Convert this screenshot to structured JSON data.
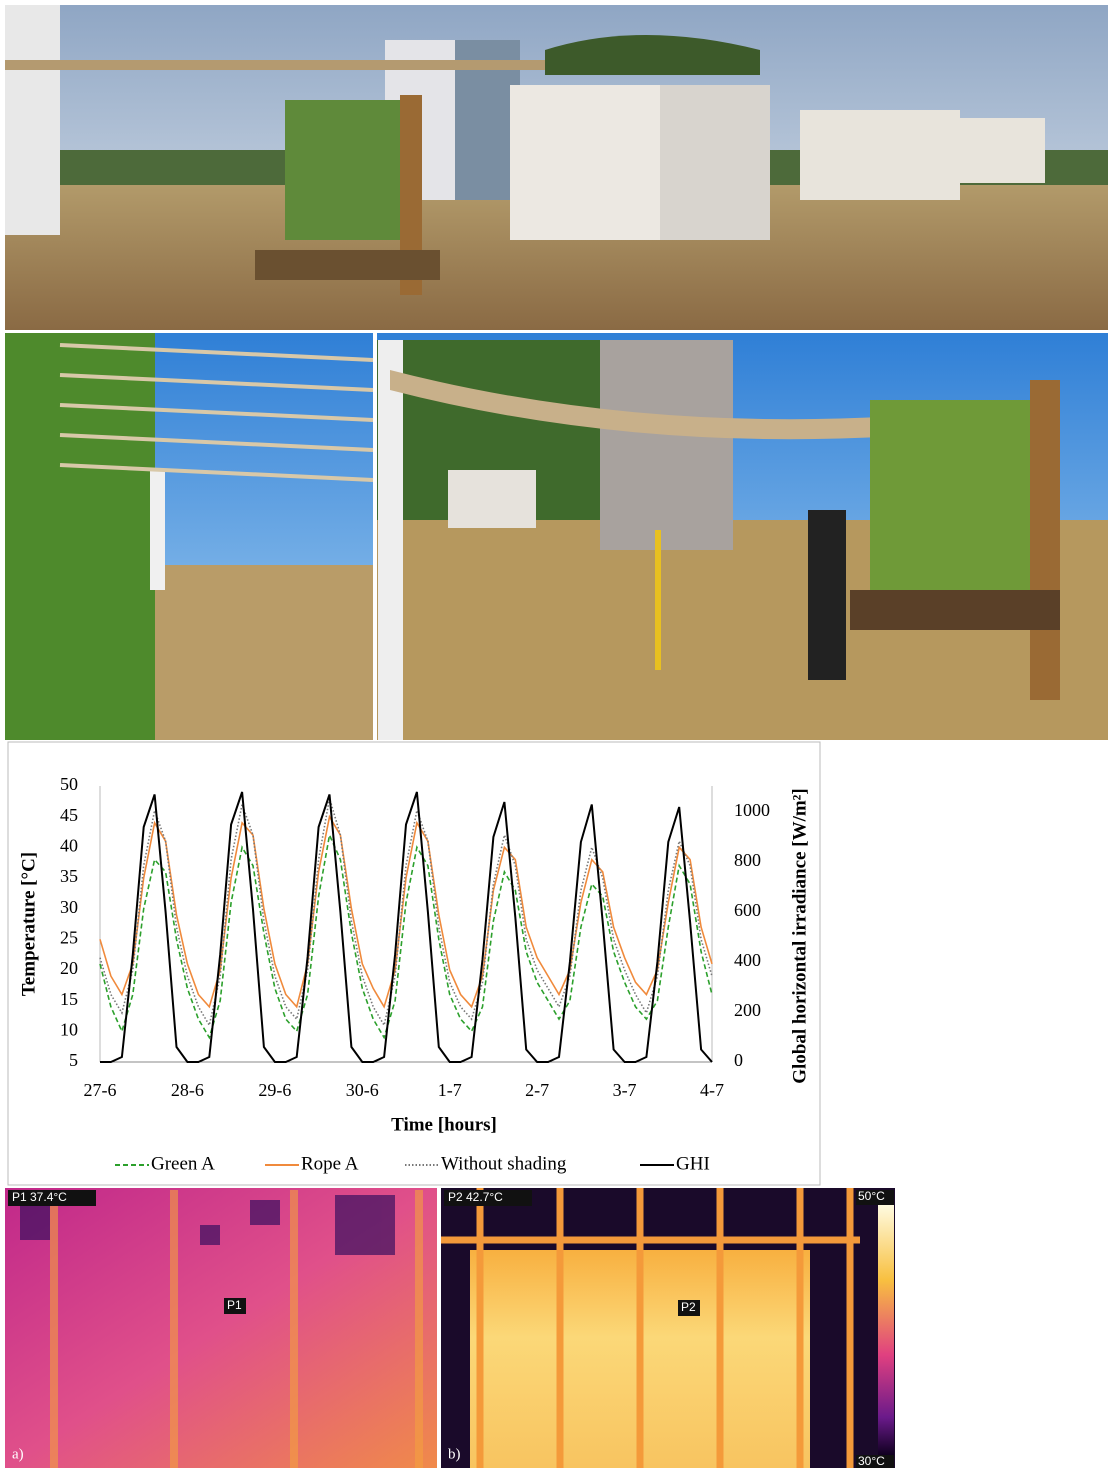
{
  "chart_data": {
    "type": "line",
    "x": [
      0,
      3,
      6,
      9,
      12,
      15,
      18,
      21,
      24,
      27,
      30,
      33,
      36,
      39,
      42,
      45,
      48,
      51,
      54,
      57,
      60,
      63,
      66,
      69,
      72,
      75,
      78,
      81,
      84,
      87,
      90,
      93,
      96,
      99,
      102,
      105,
      108,
      111,
      114,
      117,
      120,
      123,
      126,
      129,
      132,
      135,
      138,
      141,
      144,
      147,
      150,
      153,
      156,
      159,
      162,
      165,
      168
    ],
    "xlim": [
      0,
      168
    ],
    "xticks": [
      {
        "value": 0,
        "label": "27-6"
      },
      {
        "value": 24,
        "label": "28-6"
      },
      {
        "value": 48,
        "label": "29-6"
      },
      {
        "value": 72,
        "label": "30-6"
      },
      {
        "value": 96,
        "label": "1-7"
      },
      {
        "value": 120,
        "label": "2-7"
      },
      {
        "value": 144,
        "label": "3-7"
      },
      {
        "value": 168,
        "label": "4-7"
      }
    ],
    "ylim": [
      5,
      50
    ],
    "yticks": [
      5,
      10,
      15,
      20,
      25,
      30,
      35,
      40,
      45,
      50
    ],
    "y2lim": [
      0,
      1104
    ],
    "y2ticks": [
      0,
      200,
      400,
      600,
      800,
      1000
    ],
    "x_label": "Time [hours]",
    "y_label": "Temperature [°C]",
    "y2_label": "Global horizontal irradiance [W/m²]",
    "grid": false,
    "legend": "bottom",
    "series": [
      {
        "name": "Green A",
        "color": "#2ca02c",
        "dash": "dashed",
        "values": [
          21,
          14,
          10,
          16,
          30,
          38,
          36,
          25,
          17,
          12,
          9,
          15,
          31,
          40,
          37,
          26,
          17,
          12,
          10,
          16,
          32,
          42,
          38,
          26,
          17,
          12,
          9,
          15,
          31,
          40,
          37,
          25,
          16,
          12,
          10,
          14,
          28,
          36,
          33,
          23,
          18,
          15,
          12,
          15,
          27,
          34,
          32,
          23,
          18,
          14,
          12,
          15,
          27,
          37,
          34,
          23,
          16
        ]
      },
      {
        "name": "Rope A",
        "color": "#f08a3c",
        "dash": "solid",
        "values": [
          25,
          19,
          16,
          21,
          35,
          44,
          41,
          29,
          21,
          16,
          14,
          20,
          35,
          44,
          42,
          30,
          21,
          16,
          14,
          21,
          36,
          45,
          42,
          30,
          21,
          17,
          14,
          20,
          35,
          44,
          41,
          29,
          20,
          16,
          14,
          19,
          33,
          40,
          38,
          27,
          22,
          19,
          16,
          20,
          31,
          38,
          36,
          27,
          22,
          18,
          16,
          20,
          31,
          40,
          38,
          27,
          21
        ]
      },
      {
        "name": "Without shading",
        "color": "#777777",
        "dash": "dotted",
        "values": [
          22,
          16,
          13,
          20,
          37,
          46,
          41,
          27,
          19,
          14,
          11,
          19,
          38,
          47,
          42,
          28,
          19,
          14,
          12,
          20,
          38,
          48,
          42,
          28,
          19,
          14,
          11,
          19,
          37,
          46,
          41,
          27,
          18,
          14,
          12,
          18,
          34,
          42,
          37,
          25,
          20,
          17,
          14,
          19,
          33,
          40,
          35,
          25,
          20,
          16,
          13,
          19,
          33,
          41,
          37,
          25,
          19
        ]
      },
      {
        "name": "GHI",
        "color": "#000000",
        "dash": "solid",
        "axis": "y2",
        "values": [
          0,
          0,
          20,
          430,
          940,
          1070,
          600,
          60,
          0,
          0,
          20,
          430,
          950,
          1080,
          610,
          60,
          0,
          0,
          20,
          420,
          940,
          1070,
          600,
          60,
          0,
          0,
          20,
          430,
          950,
          1080,
          600,
          60,
          0,
          0,
          20,
          410,
          900,
          1040,
          580,
          50,
          0,
          0,
          20,
          400,
          880,
          1030,
          560,
          50,
          0,
          0,
          20,
          400,
          880,
          1020,
          560,
          50,
          0
        ]
      }
    ]
  },
  "thermal": {
    "panels": [
      {
        "label": "a)",
        "reading": "P1  37.4°C",
        "marker": "P1"
      },
      {
        "label": "b)",
        "reading": "P2  42.7°C",
        "marker": "P2",
        "scale_max": "50°C",
        "scale_min": "30°C"
      }
    ]
  }
}
